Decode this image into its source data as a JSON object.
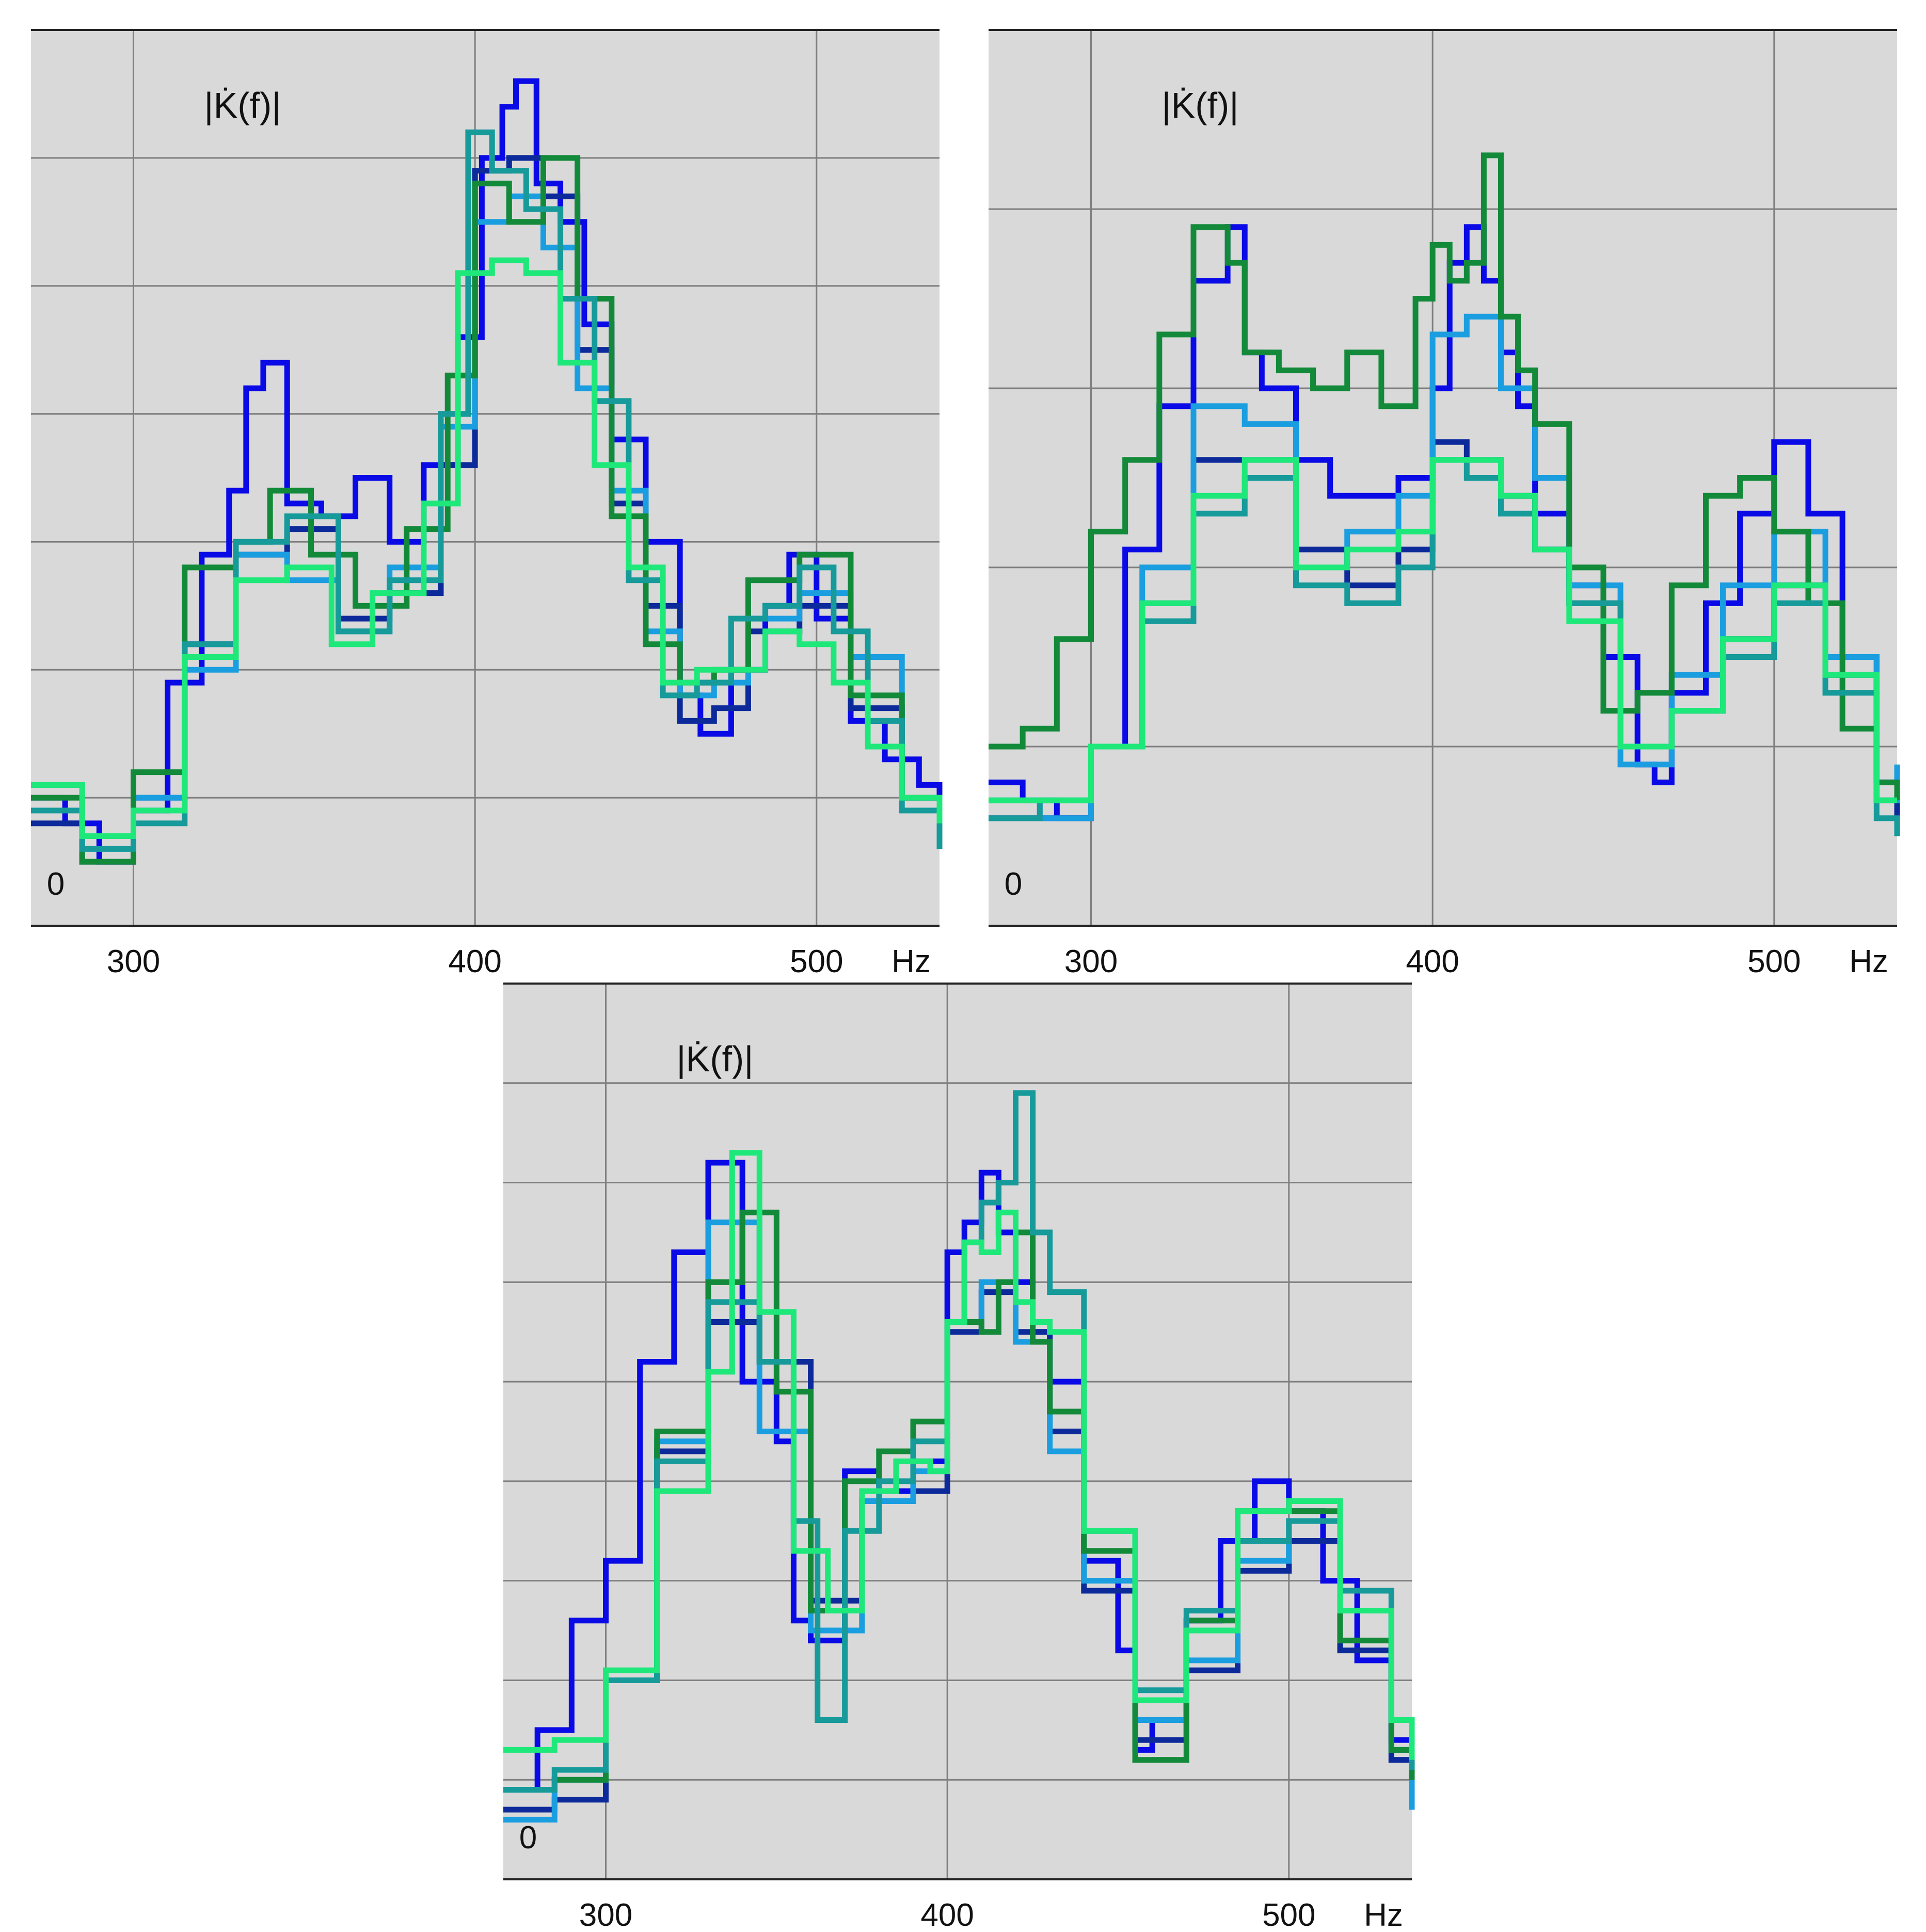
{
  "chart_data": [
    {
      "type": "line",
      "ylabel": "|K̇(f)|",
      "x_unit": "Hz",
      "xlim": [
        270,
        536
      ],
      "ylim": [
        0,
        7
      ],
      "x_ticks": [
        300,
        400,
        500
      ],
      "y_ticks": [
        0,
        1,
        2,
        3,
        4,
        5,
        6
      ],
      "y_tick_labels": [
        "0"
      ],
      "grid": true,
      "series": [
        {
          "color": "#0a0ae6",
          "x": [
            270,
            280,
            290,
            300,
            310,
            320,
            328,
            333,
            338,
            345,
            355,
            365,
            375,
            385,
            395,
            402,
            408,
            412,
            418,
            425,
            432,
            440,
            450,
            460,
            466,
            475,
            485,
            492,
            500,
            510,
            520,
            530,
            536
          ],
          "y": [
            1.0,
            0.8,
            0.5,
            0.9,
            1.9,
            2.9,
            3.4,
            4.2,
            4.4,
            3.3,
            3.2,
            3.5,
            3.0,
            3.6,
            4.6,
            6.0,
            6.4,
            6.6,
            5.8,
            5.5,
            4.7,
            3.8,
            3.0,
            1.8,
            1.5,
            2.0,
            2.5,
            2.9,
            2.4,
            1.6,
            1.3,
            1.1,
            0.8
          ]
        },
        {
          "color": "#0d2a9a",
          "x": [
            270,
            285,
            300,
            315,
            330,
            345,
            360,
            375,
            390,
            400,
            410,
            420,
            430,
            440,
            450,
            460,
            470,
            480,
            495,
            510,
            525,
            536
          ],
          "y": [
            0.8,
            0.5,
            1.0,
            2.2,
            2.9,
            3.1,
            2.4,
            2.6,
            3.6,
            5.9,
            6.0,
            5.7,
            4.5,
            3.3,
            2.5,
            1.6,
            1.7,
            2.3,
            2.5,
            1.7,
            1.0,
            0.6
          ]
        },
        {
          "color": "#1a9ee0",
          "x": [
            270,
            285,
            300,
            315,
            330,
            345,
            360,
            375,
            390,
            400,
            410,
            420,
            430,
            440,
            450,
            460,
            470,
            480,
            495,
            510,
            525,
            536
          ],
          "y": [
            1.1,
            0.6,
            1.0,
            2.0,
            2.9,
            2.7,
            2.3,
            2.8,
            3.9,
            5.5,
            5.7,
            5.3,
            4.2,
            3.4,
            2.3,
            1.8,
            1.9,
            2.4,
            2.6,
            2.1,
            1.0,
            0.7
          ]
        },
        {
          "color": "#138a3a",
          "x": [
            270,
            285,
            300,
            315,
            330,
            340,
            352,
            365,
            380,
            392,
            400,
            410,
            420,
            430,
            440,
            450,
            460,
            470,
            480,
            495,
            510,
            525,
            536
          ],
          "y": [
            1.0,
            0.5,
            1.2,
            2.8,
            3.0,
            3.4,
            2.9,
            2.5,
            3.1,
            4.3,
            5.8,
            5.5,
            6.0,
            4.9,
            3.2,
            2.2,
            1.9,
            2.0,
            2.7,
            2.9,
            1.8,
            1.0,
            0.7
          ]
        },
        {
          "color": "#169a9a",
          "x": [
            270,
            285,
            300,
            315,
            330,
            345,
            360,
            375,
            390,
            398,
            405,
            415,
            425,
            435,
            445,
            455,
            465,
            475,
            485,
            495,
            505,
            515,
            525,
            536
          ],
          "y": [
            0.9,
            0.6,
            0.8,
            2.2,
            3.0,
            3.2,
            2.3,
            2.7,
            4.0,
            6.2,
            5.9,
            5.6,
            4.9,
            4.1,
            2.7,
            1.8,
            1.9,
            2.4,
            2.5,
            2.8,
            2.3,
            1.6,
            0.9,
            0.6
          ]
        },
        {
          "color": "#1ee87a",
          "x": [
            270,
            285,
            300,
            315,
            330,
            345,
            358,
            370,
            385,
            395,
            405,
            415,
            425,
            435,
            445,
            455,
            465,
            475,
            485,
            495,
            505,
            515,
            525,
            536
          ],
          "y": [
            1.1,
            0.7,
            0.9,
            2.1,
            2.7,
            2.8,
            2.2,
            2.6,
            3.3,
            5.1,
            5.2,
            5.1,
            4.4,
            3.6,
            2.8,
            1.9,
            2.0,
            2.0,
            2.3,
            2.2,
            1.9,
            1.4,
            1.0,
            0.8
          ]
        }
      ]
    },
    {
      "type": "line",
      "ylabel": "|K̇(f)|",
      "x_unit": "Hz",
      "xlim": [
        270,
        536
      ],
      "ylim": [
        0,
        5
      ],
      "x_ticks": [
        300,
        400,
        500
      ],
      "y_ticks": [
        0,
        1,
        2,
        3,
        4
      ],
      "y_tick_labels": [
        "0"
      ],
      "grid": true,
      "series": [
        {
          "color": "#0a0ae6",
          "x": [
            270,
            280,
            290,
            300,
            310,
            320,
            330,
            340,
            345,
            350,
            360,
            370,
            380,
            390,
            400,
            405,
            410,
            415,
            420,
            425,
            430,
            440,
            450,
            460,
            465,
            470,
            480,
            490,
            500,
            510,
            520,
            530,
            536
          ],
          "y": [
            0.8,
            0.7,
            0.6,
            1.0,
            2.1,
            2.9,
            3.6,
            3.9,
            3.2,
            3.0,
            2.6,
            2.4,
            2.4,
            2.5,
            3.0,
            3.7,
            3.9,
            3.6,
            3.2,
            2.9,
            2.3,
            1.9,
            1.5,
            0.9,
            0.8,
            1.3,
            1.8,
            2.3,
            2.7,
            2.3,
            1.5,
            0.8,
            0.6
          ]
        },
        {
          "color": "#0d2a9a",
          "x": [
            270,
            285,
            300,
            315,
            330,
            345,
            360,
            375,
            390,
            400,
            410,
            420,
            430,
            440,
            455,
            470,
            485,
            500,
            515,
            530,
            536
          ],
          "y": [
            0.6,
            0.6,
            1.0,
            1.8,
            2.6,
            2.6,
            2.1,
            1.9,
            2.1,
            2.7,
            2.6,
            2.4,
            2.1,
            1.8,
            1.0,
            1.2,
            1.6,
            1.9,
            1.4,
            0.7,
            0.6
          ]
        },
        {
          "color": "#1a9ee0",
          "x": [
            270,
            285,
            300,
            315,
            330,
            345,
            360,
            375,
            390,
            400,
            410,
            420,
            430,
            440,
            455,
            470,
            485,
            500,
            515,
            530,
            536
          ],
          "y": [
            0.7,
            0.6,
            1.0,
            2.0,
            2.9,
            2.8,
            2.0,
            2.2,
            2.4,
            3.3,
            3.4,
            3.0,
            2.5,
            1.9,
            0.9,
            1.4,
            1.9,
            2.2,
            1.5,
            0.7,
            0.9
          ]
        },
        {
          "color": "#138a3a",
          "x": [
            270,
            280,
            290,
            300,
            310,
            320,
            330,
            340,
            345,
            355,
            365,
            375,
            385,
            395,
            400,
            405,
            410,
            415,
            420,
            425,
            430,
            440,
            450,
            460,
            470,
            480,
            490,
            500,
            510,
            520,
            530,
            536
          ],
          "y": [
            1.0,
            1.1,
            1.6,
            2.2,
            2.6,
            3.3,
            3.9,
            3.7,
            3.2,
            3.1,
            3.0,
            3.2,
            2.9,
            3.5,
            3.8,
            3.6,
            3.7,
            4.3,
            3.4,
            3.1,
            2.8,
            2.0,
            1.2,
            1.3,
            1.9,
            2.4,
            2.5,
            2.2,
            1.8,
            1.1,
            0.8,
            0.7
          ]
        },
        {
          "color": "#169a9a",
          "x": [
            270,
            285,
            300,
            315,
            330,
            345,
            360,
            375,
            390,
            400,
            410,
            420,
            430,
            440,
            455,
            470,
            485,
            500,
            515,
            530,
            536
          ],
          "y": [
            0.6,
            0.7,
            1.0,
            1.7,
            2.3,
            2.5,
            1.9,
            1.8,
            2.0,
            2.6,
            2.5,
            2.3,
            2.1,
            1.8,
            1.0,
            1.2,
            1.5,
            1.8,
            1.3,
            0.6,
            0.5
          ]
        },
        {
          "color": "#1ee87a",
          "x": [
            270,
            285,
            300,
            315,
            330,
            345,
            360,
            375,
            390,
            400,
            410,
            420,
            430,
            440,
            455,
            470,
            485,
            500,
            515,
            530,
            536
          ],
          "y": [
            0.7,
            0.7,
            1.0,
            1.8,
            2.4,
            2.6,
            2.0,
            2.1,
            2.2,
            2.6,
            2.6,
            2.4,
            2.1,
            1.7,
            1.0,
            1.2,
            1.6,
            1.9,
            1.4,
            0.7,
            0.7
          ]
        }
      ]
    },
    {
      "type": "line",
      "ylabel": "|K̇(f)|",
      "x_unit": "Hz",
      "xlim": [
        270,
        536
      ],
      "ylim": [
        0,
        9
      ],
      "x_ticks": [
        300,
        400,
        500
      ],
      "y_ticks": [
        0,
        1,
        2,
        3,
        4,
        5,
        6,
        7,
        8
      ],
      "y_tick_labels": [
        "0"
      ],
      "grid": true,
      "series": [
        {
          "color": "#0a0ae6",
          "x": [
            270,
            280,
            290,
            300,
            310,
            320,
            330,
            340,
            350,
            355,
            360,
            370,
            380,
            390,
            400,
            405,
            410,
            415,
            420,
            425,
            430,
            440,
            450,
            455,
            460,
            470,
            480,
            490,
            500,
            510,
            520,
            530,
            536
          ],
          "y": [
            0.9,
            1.5,
            2.6,
            3.2,
            5.2,
            6.3,
            7.2,
            5.0,
            4.4,
            2.6,
            2.4,
            4.1,
            3.9,
            4.2,
            6.3,
            6.6,
            7.1,
            6.5,
            6.0,
            5.5,
            5.0,
            3.2,
            2.3,
            1.3,
            1.6,
            2.6,
            3.4,
            4.0,
            3.7,
            3.0,
            2.2,
            1.4,
            0.8
          ]
        },
        {
          "color": "#0d2a9a",
          "x": [
            270,
            285,
            300,
            315,
            330,
            345,
            360,
            375,
            390,
            400,
            410,
            420,
            430,
            440,
            455,
            470,
            485,
            500,
            515,
            530,
            536
          ],
          "y": [
            0.7,
            0.8,
            2.0,
            4.3,
            5.6,
            5.2,
            2.8,
            3.8,
            3.9,
            5.5,
            5.9,
            5.5,
            4.5,
            2.9,
            1.4,
            2.1,
            3.1,
            3.4,
            2.3,
            1.2,
            0.9
          ]
        },
        {
          "color": "#1a9ee0",
          "x": [
            270,
            285,
            300,
            315,
            330,
            345,
            360,
            375,
            390,
            400,
            410,
            420,
            430,
            440,
            455,
            470,
            485,
            500,
            515,
            530,
            536
          ],
          "y": [
            0.6,
            1.0,
            2.0,
            4.4,
            6.6,
            4.5,
            2.5,
            3.8,
            4.1,
            5.6,
            6.0,
            5.4,
            4.3,
            3.0,
            1.6,
            2.2,
            3.2,
            3.6,
            2.7,
            1.3,
            0.7
          ]
        },
        {
          "color": "#138a3a",
          "x": [
            270,
            285,
            300,
            315,
            330,
            340,
            350,
            360,
            370,
            380,
            390,
            400,
            410,
            415,
            420,
            425,
            430,
            440,
            455,
            470,
            485,
            500,
            515,
            530,
            536
          ],
          "y": [
            0.9,
            1.0,
            2.0,
            4.5,
            6.0,
            6.7,
            4.9,
            2.7,
            4.0,
            4.3,
            4.6,
            5.6,
            5.5,
            6.0,
            6.5,
            5.4,
            4.7,
            3.3,
            1.2,
            2.6,
            3.7,
            3.7,
            2.4,
            1.3,
            1.0
          ]
        },
        {
          "color": "#169a9a",
          "x": [
            270,
            285,
            300,
            315,
            330,
            345,
            355,
            362,
            370,
            380,
            390,
            400,
            405,
            410,
            415,
            420,
            425,
            430,
            440,
            455,
            470,
            485,
            500,
            515,
            530,
            536
          ],
          "y": [
            0.9,
            1.1,
            2.0,
            4.2,
            5.8,
            5.2,
            3.6,
            1.6,
            3.5,
            4.0,
            4.4,
            5.6,
            6.4,
            6.8,
            7.0,
            7.9,
            6.5,
            5.9,
            3.5,
            1.9,
            2.7,
            3.4,
            3.6,
            2.9,
            1.6,
            1.1
          ]
        },
        {
          "color": "#1ee87a",
          "x": [
            270,
            285,
            300,
            315,
            330,
            337,
            345,
            355,
            365,
            375,
            385,
            395,
            400,
            405,
            410,
            415,
            420,
            425,
            430,
            440,
            455,
            470,
            485,
            500,
            515,
            530,
            536
          ],
          "y": [
            1.3,
            1.4,
            2.1,
            3.9,
            5.1,
            7.3,
            5.7,
            3.3,
            2.7,
            3.9,
            4.2,
            4.1,
            5.6,
            6.4,
            6.3,
            6.7,
            5.8,
            5.6,
            5.5,
            3.5,
            1.8,
            2.5,
            3.7,
            3.8,
            2.7,
            1.6,
            1.2
          ]
        }
      ]
    }
  ]
}
